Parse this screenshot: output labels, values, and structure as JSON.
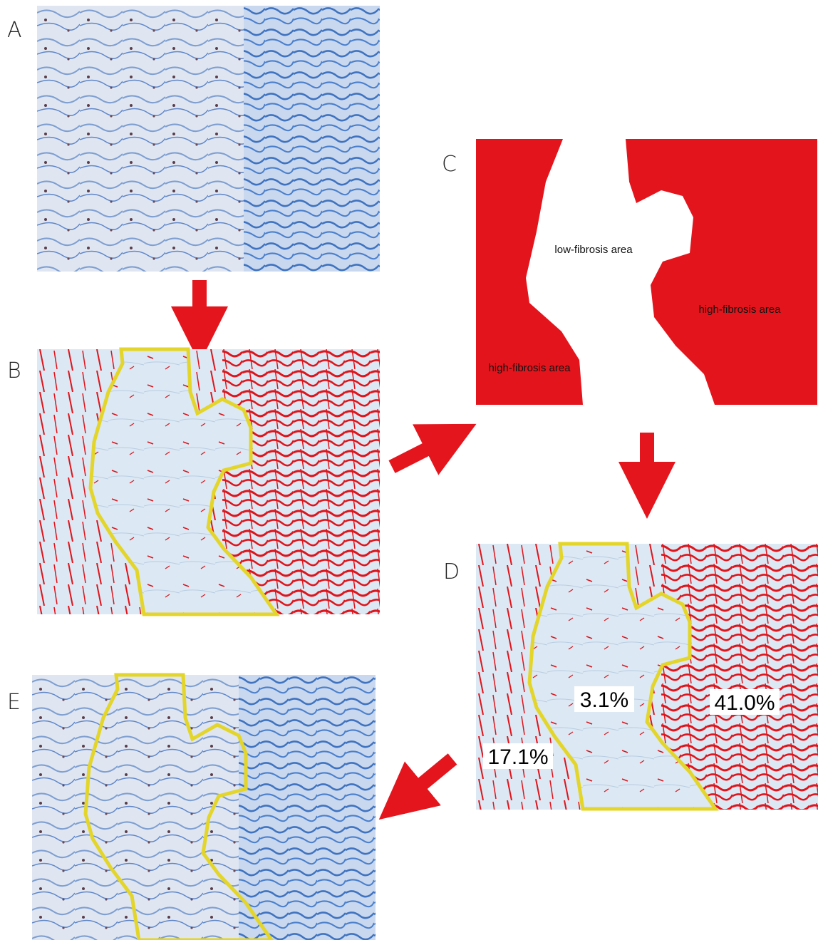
{
  "panels": {
    "a": {
      "label": "A"
    },
    "b": {
      "label": "B"
    },
    "c": {
      "label": "C",
      "low_area": "low-fibrosis area",
      "high_area_left": "high-fibrosis area",
      "high_area_right": "high-fibrosis area"
    },
    "d": {
      "label": "D",
      "center_pct": "3.1%",
      "right_pct": "41.0%",
      "left_pct": "17.1%"
    },
    "e": {
      "label": "E"
    }
  }
}
